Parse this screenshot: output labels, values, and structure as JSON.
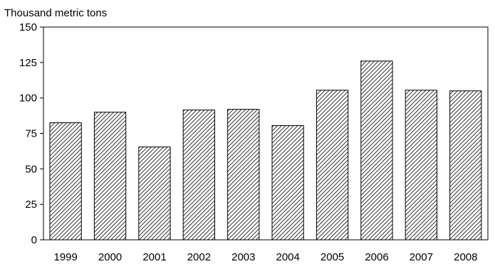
{
  "chart_data": {
    "type": "bar",
    "title": "",
    "xlabel": "",
    "ylabel": "Thousand metric tons",
    "categories": [
      "1999",
      "2000",
      "2001",
      "2002",
      "2003",
      "2004",
      "2005",
      "2006",
      "2007",
      "2008"
    ],
    "values": [
      82.5,
      90,
      65.5,
      91.5,
      92,
      80.5,
      105.5,
      126,
      105.5,
      105
    ],
    "ylim": [
      0,
      150
    ],
    "yticks": [
      0,
      25,
      50,
      75,
      100,
      125,
      150
    ],
    "grid": false,
    "legend": "none",
    "bar_fill": "diagonal-hatch",
    "bar_color": "#000000"
  }
}
